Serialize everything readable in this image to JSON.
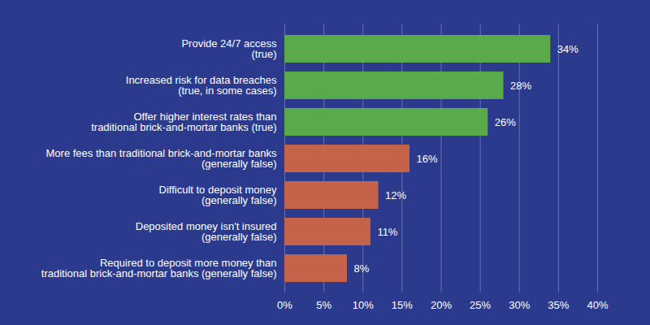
{
  "chart_data": {
    "type": "bar",
    "orientation": "horizontal",
    "categories": [
      "Provide 24/7 access\n(true)",
      "Increased risk for data breaches\n(true, in some cases)",
      "Offer higher interest rates than\ntraditional brick-and-mortar banks (true)",
      "More fees than traditional brick-and-mortar banks\n(generally false)",
      "Difficult to deposit money\n(generally false)",
      "Deposited money isn't insured\n(generally false)",
      "Required to deposit more money than\ntraditional brick-and-mortar banks (generally false)"
    ],
    "values": [
      34,
      28,
      26,
      16,
      12,
      11,
      8
    ],
    "value_labels": [
      "34%",
      "28%",
      "26%",
      "16%",
      "12%",
      "11%",
      "8%"
    ],
    "colors": [
      "#5aaa4c",
      "#5aaa4c",
      "#5aaa4c",
      "#c4634a",
      "#c4634a",
      "#c4634a",
      "#c4634a"
    ],
    "xlim": [
      0,
      40
    ],
    "xticks": [
      {
        "value": 0,
        "label": "0%"
      },
      {
        "value": 5,
        "label": "5%"
      },
      {
        "value": 10,
        "label": "10%"
      },
      {
        "value": 15,
        "label": "15%"
      },
      {
        "value": 20,
        "label": "20%"
      },
      {
        "value": 25,
        "label": "25%"
      },
      {
        "value": 30,
        "label": "30%"
      },
      {
        "value": 35,
        "label": "35%"
      },
      {
        "value": 40,
        "label": "40%"
      }
    ],
    "grid": true,
    "data_labels": true
  }
}
